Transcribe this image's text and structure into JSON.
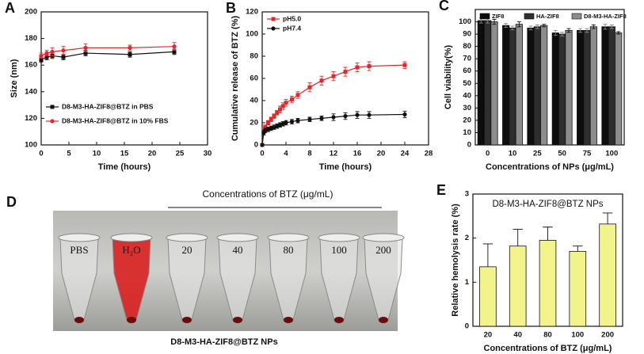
{
  "chart_data": [
    {
      "panel": "A",
      "type": "line",
      "xlabel": "Time (hours)",
      "ylabel": "Size (nm)",
      "x": [
        0,
        1,
        2,
        4,
        8,
        16,
        24
      ],
      "series": [
        {
          "name": "D8-M3-HA-ZIF8@BTZ in PBS",
          "color": "#111111",
          "marker": "square",
          "values": [
            164,
            166,
            167,
            166,
            169,
            168,
            170
          ],
          "errors": [
            2,
            2,
            2,
            2,
            2,
            2,
            2
          ]
        },
        {
          "name": "D8-M3-HA-ZIF8@BTZ in 10% FBS",
          "color": "#e8262a",
          "marker": "circle",
          "values": [
            167,
            169,
            170,
            171,
            173,
            173,
            174
          ],
          "errors": [
            2,
            2,
            3,
            3,
            3,
            2,
            3
          ]
        }
      ],
      "xlim": [
        0,
        30
      ],
      "xticks": [
        0,
        5,
        10,
        15,
        20,
        25,
        30
      ],
      "ylim": [
        100,
        200
      ],
      "yticks": [
        100,
        120,
        140,
        160,
        180,
        200
      ],
      "legend": "lower left"
    },
    {
      "panel": "B",
      "type": "line",
      "xlabel": "Time (hours)",
      "ylabel": "Cumulative release of BTZ (%)",
      "x": [
        0,
        0.25,
        0.5,
        1,
        1.5,
        2,
        2.5,
        3,
        3.5,
        4,
        5,
        6,
        8,
        10,
        12,
        14,
        16,
        18,
        24
      ],
      "series": [
        {
          "name": "pH5.0",
          "color": "#e8262a",
          "marker": "square",
          "values": [
            0,
            12,
            16,
            20,
            23,
            26,
            29,
            32,
            35,
            38,
            41,
            45,
            52,
            58,
            62,
            66,
            70,
            71,
            72
          ],
          "errors": [
            0,
            2,
            2,
            2,
            2,
            2,
            2,
            3,
            3,
            3,
            3,
            3,
            4,
            4,
            4,
            4,
            4,
            4,
            3
          ]
        },
        {
          "name": "pH7.4",
          "color": "#111111",
          "marker": "circle",
          "values": [
            0,
            11,
            13,
            14,
            15,
            16,
            17,
            18,
            19,
            20,
            21,
            22,
            23,
            24,
            25,
            26,
            27,
            27,
            27.5
          ],
          "errors": [
            0,
            2,
            2,
            2,
            2,
            2,
            2,
            2,
            2,
            2,
            2,
            2,
            2,
            2,
            3,
            3,
            3,
            3,
            3
          ]
        }
      ],
      "xlim": [
        0,
        28
      ],
      "xticks": [
        0,
        4,
        8,
        12,
        16,
        20,
        24,
        28
      ],
      "ylim": [
        0,
        120
      ],
      "yticks": [
        0,
        20,
        40,
        60,
        80,
        100,
        120
      ],
      "legend": "upper left"
    },
    {
      "panel": "C",
      "type": "bar",
      "xlabel": "Concentrations of NPs (μg/mL)",
      "ylabel": "Cell viability(%)",
      "categories": [
        "0",
        "10",
        "25",
        "50",
        "75",
        "100"
      ],
      "series": [
        {
          "name": "ZIF8",
          "color": "#0d0d0d",
          "values": [
            101,
            97,
            95,
            91,
            93,
            96
          ],
          "errors": [
            2,
            1.5,
            1.5,
            2,
            1.5,
            2
          ]
        },
        {
          "name": "HA-ZIF8",
          "color": "#2e2e2e",
          "values": [
            101,
            95,
            96,
            90,
            93,
            96
          ],
          "errors": [
            2,
            1.5,
            1.5,
            1.5,
            1.5,
            1.5
          ]
        },
        {
          "name": "D8-M3-HA-ZIF8",
          "color": "#8c8c8c",
          "values": [
            100,
            98,
            97,
            93,
            96,
            91
          ],
          "errors": [
            2,
            2,
            1,
            1.5,
            1.5,
            1
          ]
        }
      ],
      "ylim": [
        0,
        110
      ],
      "yticks": [
        0,
        10,
        20,
        30,
        40,
        50,
        60,
        70,
        80,
        90,
        100
      ],
      "legend": "top"
    },
    {
      "panel": "E",
      "type": "bar",
      "title": "D8-M3-HA-ZIF8@BTZ NPs",
      "xlabel": "Concentrations of BTZ (μg/mL)",
      "ylabel": "Relative hemolysis rate (%)",
      "categories": [
        "20",
        "40",
        "80",
        "100",
        "200"
      ],
      "series": [
        {
          "color": "#f3f38c",
          "values": [
            1.35,
            1.82,
            1.95,
            1.7,
            2.32
          ],
          "errors": [
            0.52,
            0.38,
            0.3,
            0.12,
            0.25
          ]
        }
      ],
      "ylim": [
        0,
        3
      ],
      "yticks": [
        0,
        1,
        2,
        3
      ]
    }
  ],
  "photo_panel": {
    "panel": "D",
    "heading": "Concentrations of BTZ (μg/mL)",
    "tubes": [
      "PBS",
      "H₂O",
      "20",
      "40",
      "80",
      "100",
      "200"
    ],
    "caption": "D8-M3-HA-ZIF8@BTZ NPs"
  }
}
